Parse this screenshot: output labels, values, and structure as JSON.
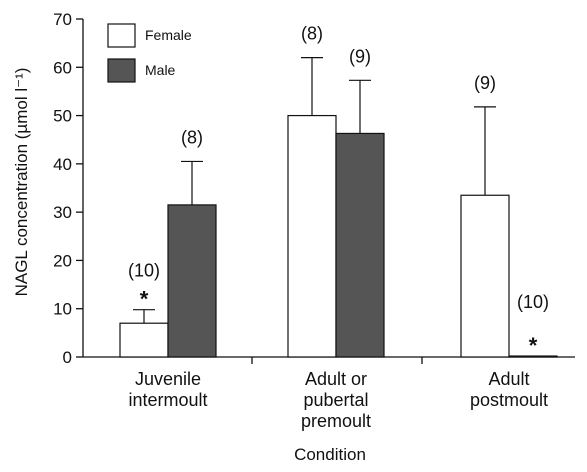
{
  "chart_data": {
    "type": "bar",
    "ylabel": "NAGL concentration (µmol l⁻¹)",
    "xlabel": "Condition",
    "ylim": [
      0,
      70
    ],
    "y_ticks": [
      0,
      10,
      20,
      30,
      40,
      50,
      60,
      70
    ],
    "categories": [
      [
        "Juvenile",
        "intermoult"
      ],
      [
        "Adult or",
        "pubertal",
        "premoult"
      ],
      [
        "Adult",
        "postmoult"
      ]
    ],
    "series": [
      {
        "name": "Female",
        "color": "#ffffff",
        "values": [
          7,
          50,
          33.5
        ],
        "errors": [
          2.8,
          12,
          18.3
        ],
        "n_labels": [
          "(10)",
          "(8)",
          "(9)"
        ],
        "significance": [
          "*",
          "",
          ""
        ]
      },
      {
        "name": "Male",
        "color": "#555555",
        "values": [
          31.5,
          46.3,
          0.2
        ],
        "errors": [
          9,
          11,
          0
        ],
        "n_labels": [
          "(8)",
          "(9)",
          "(10)"
        ],
        "significance": [
          "",
          "",
          "*"
        ]
      }
    ],
    "legend_position": "top-left",
    "grid": false
  }
}
